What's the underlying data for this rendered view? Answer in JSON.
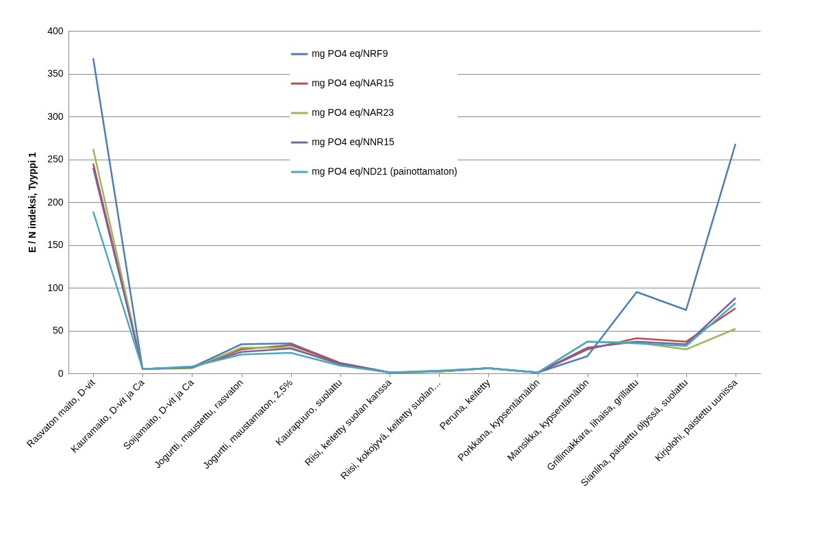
{
  "chart_data": {
    "type": "line",
    "ylabel": "E / N indeksi, Tyyppi 1",
    "categories": [
      "Rasvaton maito, D-vit",
      "Kauramaito, D-vit ja Ca",
      "Soijamaito, D-vit ja Ca",
      "Jogurtti, maustettu, rasvaton",
      "Jogurtti, maustamaton, 2,5%",
      "Kaurapuuro, suolattu",
      "Riisi, keitetty suolan kanssa",
      "Riisi, kokojyvä, keitetty suolan…",
      "Peruna, keitetty",
      "Porkkana, kypsentämätön",
      "Mansikka, kypsentämätön",
      "Grillimakkara, lihaisa, grillattu",
      "Sianliha, paistettu öljyssä, suolattu",
      "Kirjolohi, paistettu uunissa"
    ],
    "series": [
      {
        "name": "mg PO4 eq/NRF9",
        "color": "#4a7ebb",
        "values": [
          368,
          5,
          7,
          34,
          35,
          12,
          1,
          2,
          6,
          1,
          20,
          95,
          74,
          268
        ]
      },
      {
        "name": "mg PO4 eq/NAR15",
        "color": "#be4b48",
        "values": [
          245,
          5,
          7,
          28,
          33,
          12,
          1,
          2,
          6,
          1,
          28,
          41,
          37,
          76
        ]
      },
      {
        "name": "mg PO4 eq/NAR23",
        "color": "#98b954",
        "values": [
          262,
          5,
          6,
          30,
          30,
          10,
          1,
          2,
          6,
          1,
          37,
          36,
          28,
          52
        ]
      },
      {
        "name": "mg PO4 eq/NNR15",
        "color": "#7d60a0",
        "values": [
          240,
          5,
          7,
          25,
          29,
          11,
          1,
          3,
          6,
          1,
          30,
          37,
          34,
          88
        ]
      },
      {
        "name": "mg PO4 eq/ND21 (painottamaton)",
        "color": "#46aac5",
        "values": [
          189,
          5,
          8,
          22,
          24,
          9,
          1,
          3,
          6,
          1,
          37,
          35,
          32,
          82
        ]
      }
    ],
    "ylim": [
      0,
      400
    ],
    "yticks": [
      0,
      50,
      100,
      150,
      200,
      250,
      300,
      350,
      400
    ],
    "grid": "y",
    "legend": "top",
    "marker": "none",
    "line_style": "solid"
  }
}
